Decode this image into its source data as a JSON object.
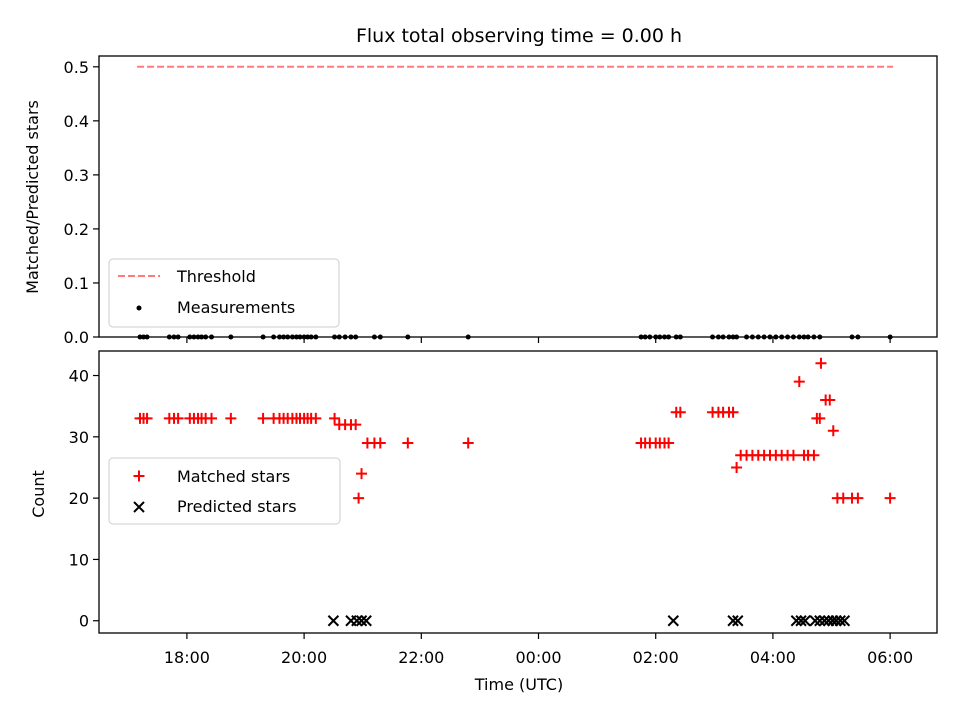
{
  "chart_data": [
    {
      "type": "line",
      "title": "Flux total observing time = 0.00 h",
      "ylabel": "Matched/Predicted stars",
      "ylim": [
        0,
        0.52
      ],
      "yticks": [
        0.0,
        0.1,
        0.2,
        0.3,
        0.4,
        0.5
      ],
      "ytick_labels": [
        "0.0",
        "0.1",
        "0.2",
        "0.3",
        "0.4",
        "0.5"
      ],
      "series": [
        {
          "name": "Threshold",
          "kind": "dashed-line",
          "color": "#ff7b7b",
          "x": [
            17.15,
            30.05
          ],
          "values": [
            0.5,
            0.5
          ]
        },
        {
          "name": "Measurements",
          "kind": "dot",
          "color": "#000000",
          "x": [
            17.2,
            17.26,
            17.32,
            17.7,
            17.78,
            17.85,
            18.05,
            18.12,
            18.19,
            18.25,
            18.32,
            18.42,
            18.75,
            19.3,
            19.48,
            19.58,
            19.65,
            19.72,
            19.8,
            19.87,
            19.93,
            20.0,
            20.06,
            20.12,
            20.2,
            20.52,
            20.6,
            20.7,
            20.8,
            20.88,
            21.2,
            21.3,
            21.77,
            22.8,
            25.75,
            25.82,
            25.9,
            26.0,
            26.07,
            26.15,
            26.22,
            26.35,
            26.42,
            26.97,
            27.07,
            27.15,
            27.25,
            27.32,
            27.38,
            27.55,
            27.65,
            27.75,
            27.85,
            27.95,
            28.05,
            28.15,
            28.25,
            28.35,
            28.45,
            28.53,
            28.6,
            28.7,
            28.8,
            29.35,
            29.45,
            30.0
          ],
          "values": [
            0,
            0,
            0,
            0,
            0,
            0,
            0,
            0,
            0,
            0,
            0,
            0,
            0,
            0,
            0,
            0,
            0,
            0,
            0,
            0,
            0,
            0,
            0,
            0,
            0,
            0,
            0,
            0,
            0,
            0,
            0,
            0,
            0,
            0,
            0,
            0,
            0,
            0,
            0,
            0,
            0,
            0,
            0,
            0,
            0,
            0,
            0,
            0,
            0,
            0,
            0,
            0,
            0,
            0,
            0,
            0,
            0,
            0,
            0,
            0,
            0,
            0,
            0,
            0,
            0,
            0
          ]
        }
      ],
      "legend": {
        "location": "lower-left",
        "entries": [
          "Threshold",
          "Measurements"
        ]
      }
    },
    {
      "type": "scatter",
      "title": "",
      "xlabel": "Time (UTC)",
      "ylabel": "Count",
      "xlim": [
        16.5,
        30.8
      ],
      "ylim": [
        -2,
        44
      ],
      "xticks": [
        18,
        20,
        22,
        24,
        26,
        28,
        30
      ],
      "xtick_labels": [
        "18:00",
        "20:00",
        "22:00",
        "00:00",
        "02:00",
        "04:00",
        "06:00"
      ],
      "yticks": [
        0,
        10,
        20,
        30,
        40
      ],
      "ytick_labels": [
        "0",
        "10",
        "20",
        "30",
        "40"
      ],
      "series": [
        {
          "name": "Matched stars",
          "marker": "plus",
          "color": "#ff0000",
          "x": [
            17.2,
            17.26,
            17.32,
            17.7,
            17.78,
            17.85,
            18.05,
            18.12,
            18.19,
            18.25,
            18.32,
            18.42,
            18.75,
            19.3,
            19.48,
            19.58,
            19.65,
            19.72,
            19.8,
            19.87,
            19.93,
            20.0,
            20.06,
            20.12,
            20.2,
            20.52,
            20.6,
            20.7,
            20.8,
            20.88,
            20.93,
            20.98,
            21.08,
            21.2,
            21.3,
            21.77,
            22.8,
            25.75,
            25.82,
            25.9,
            26.0,
            26.07,
            26.15,
            26.22,
            26.35,
            26.42,
            26.97,
            27.07,
            27.15,
            27.25,
            27.32,
            27.38,
            27.45,
            27.55,
            27.65,
            27.75,
            27.85,
            27.95,
            28.05,
            28.15,
            28.25,
            28.35,
            28.45,
            28.53,
            28.6,
            28.7,
            28.8,
            28.75,
            28.82,
            28.9,
            28.97,
            29.03,
            29.1,
            29.2,
            29.35,
            29.45,
            30.0
          ],
          "values": [
            33,
            33,
            33,
            33,
            33,
            33,
            33,
            33,
            33,
            33,
            33,
            33,
            33,
            33,
            33,
            33,
            33,
            33,
            33,
            33,
            33,
            33,
            33,
            33,
            33,
            33,
            32,
            32,
            32,
            32,
            20,
            24,
            29,
            29,
            29,
            29,
            29,
            29,
            29,
            29,
            29,
            29,
            29,
            29,
            34,
            34,
            34,
            34,
            34,
            34,
            34,
            25,
            27,
            27,
            27,
            27,
            27,
            27,
            27,
            27,
            27,
            27,
            39,
            27,
            27,
            27,
            33,
            33,
            42,
            36,
            36,
            31,
            20,
            20,
            20,
            20,
            20
          ]
        },
        {
          "name": "Predicted stars",
          "marker": "x",
          "color": "#000000",
          "x": [
            20.5,
            20.8,
            20.9,
            20.98,
            21.06,
            26.3,
            27.32,
            27.4,
            28.4,
            28.48,
            28.55,
            28.72,
            28.8,
            28.88,
            28.95,
            29.02,
            29.08,
            29.15,
            29.22
          ],
          "values": [
            0,
            0,
            0,
            0,
            0,
            0,
            0,
            0,
            0,
            0,
            0,
            0,
            0,
            0,
            0,
            0,
            0,
            0,
            0
          ]
        }
      ],
      "legend": {
        "location": "center-left",
        "entries": [
          "Matched stars",
          "Predicted stars"
        ]
      }
    }
  ]
}
